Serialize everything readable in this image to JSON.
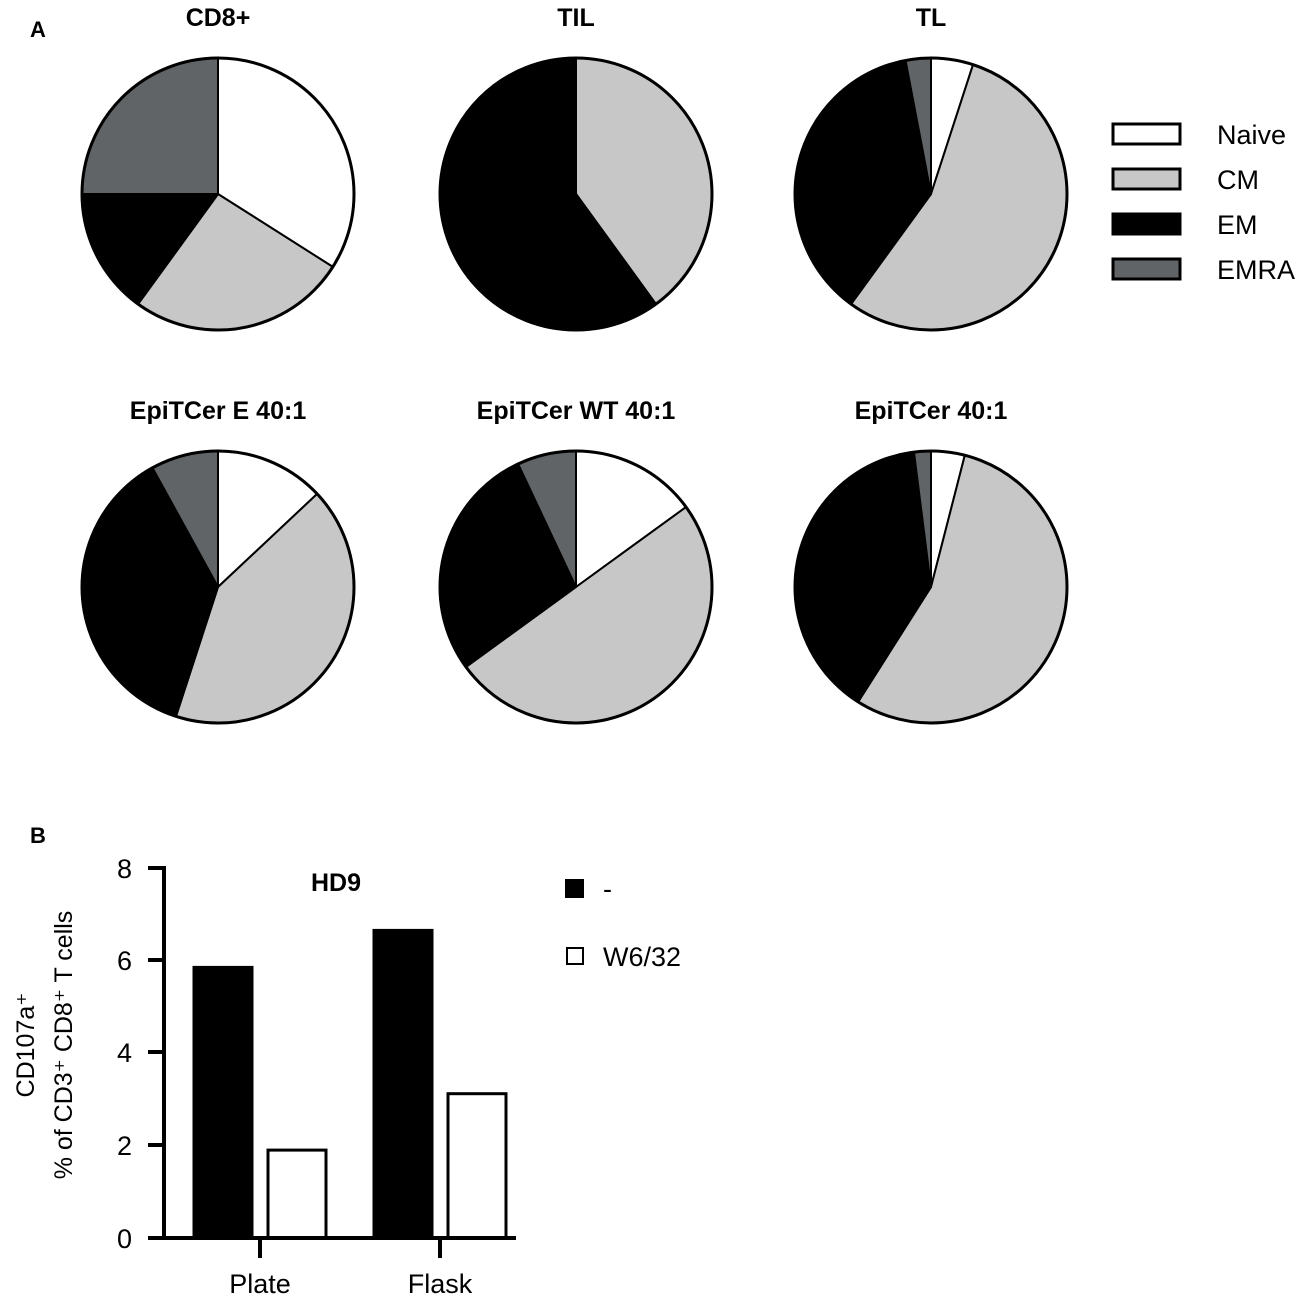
{
  "figure": {
    "panel_a_label": "A",
    "panel_b_label": "B"
  },
  "colors": {
    "Naive": "#ffffff",
    "CM": "#c6c7c6",
    "EM": "#000000",
    "EMRA": "#606466",
    "outline": "#000000"
  },
  "chart_data": [
    {
      "type": "pie",
      "title": "CD8+",
      "labels": [
        "Naive",
        "CM",
        "EM",
        "EMRA"
      ],
      "values": [
        34,
        26,
        15,
        25
      ]
    },
    {
      "type": "pie",
      "title": "TIL",
      "labels": [
        "Naive",
        "CM",
        "EM",
        "EMRA"
      ],
      "values": [
        0,
        40,
        60,
        0
      ]
    },
    {
      "type": "pie",
      "title": "TL",
      "labels": [
        "Naive",
        "CM",
        "EM",
        "EMRA"
      ],
      "values": [
        5,
        55,
        37,
        3
      ]
    },
    {
      "type": "pie",
      "title": "EpiTCer E 40:1",
      "labels": [
        "Naive",
        "CM",
        "EM",
        "EMRA"
      ],
      "values": [
        13,
        42,
        37,
        8
      ]
    },
    {
      "type": "pie",
      "title": "EpiTCer WT 40:1",
      "labels": [
        "Naive",
        "CM",
        "EM",
        "EMRA"
      ],
      "values": [
        15,
        50,
        28,
        7
      ]
    },
    {
      "type": "pie",
      "title": "EpiTCer 40:1",
      "labels": [
        "Naive",
        "CM",
        "EM",
        "EMRA"
      ],
      "values": [
        4,
        55,
        39,
        2
      ]
    },
    {
      "type": "bar",
      "title": "HD9",
      "categories": [
        "Plate",
        "Flask"
      ],
      "series": [
        {
          "name": "-",
          "values": [
            5.85,
            6.65
          ],
          "color": "#000000"
        },
        {
          "name": "W6/32",
          "values": [
            1.9,
            3.12
          ],
          "color": "#ffffff"
        }
      ],
      "ylabel_line1": "CD107a⁺",
      "ylabel_line2": "% of CD3⁺ CD8⁺ T cells",
      "ylim": [
        0,
        8
      ],
      "yticks": [
        "0",
        "2",
        "4",
        "6",
        "8"
      ],
      "grid": false,
      "legend_position": "right"
    }
  ],
  "pie_legend": {
    "position": "right",
    "entries": [
      "Naive",
      "CM",
      "EM",
      "EMRA"
    ]
  }
}
